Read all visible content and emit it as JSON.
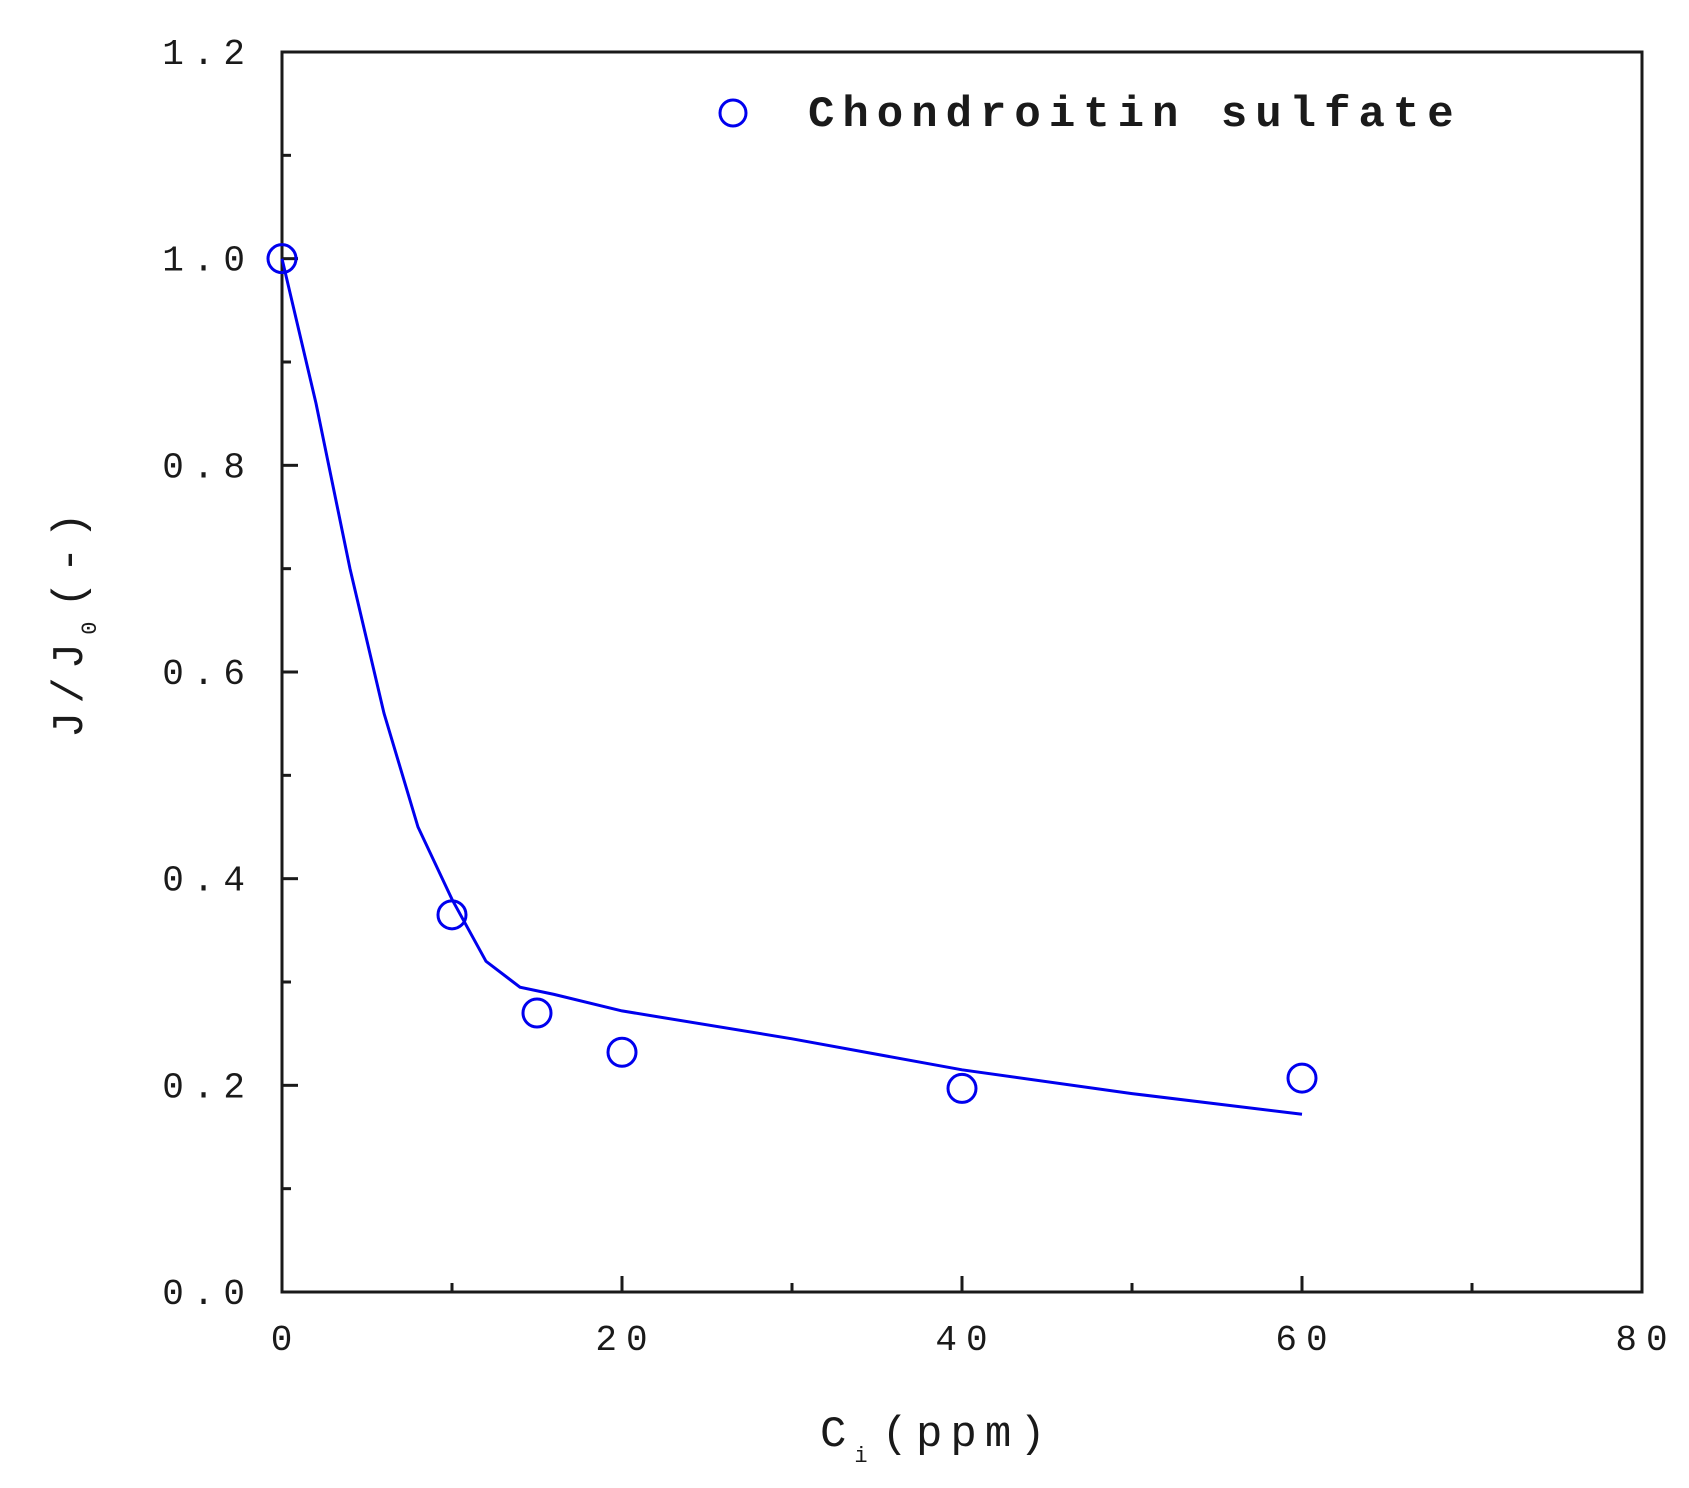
{
  "chart_data": {
    "type": "scatter",
    "title": "",
    "xlabel": {
      "main": "C",
      "sub": "i",
      "rest": "(ppm)"
    },
    "ylabel": {
      "main": "J/J",
      "sub": "0",
      "rest": "(-)"
    },
    "xlim": [
      0,
      80
    ],
    "ylim": [
      0.0,
      1.2
    ],
    "x_ticks": [
      "0",
      "20",
      "40",
      "60",
      "80"
    ],
    "x_tick_values": [
      0,
      20,
      40,
      60,
      80
    ],
    "x_minor_tick_values": [
      10,
      30,
      50,
      70
    ],
    "y_ticks": [
      "0.0",
      "0.2",
      "0.4",
      "0.6",
      "0.8",
      "1.0",
      "1.2"
    ],
    "y_tick_values": [
      0.0,
      0.2,
      0.4,
      0.6,
      0.8,
      1.0,
      1.2
    ],
    "y_minor_tick_values": [
      0.1,
      0.3,
      0.5,
      0.7,
      0.9,
      1.1
    ],
    "grid": false,
    "legend_position": "top-right",
    "series": [
      {
        "name": "Chondroitin sulfate",
        "marker": "open-circle",
        "color": "#0000ee",
        "x": [
          0,
          10,
          15,
          20,
          40,
          60
        ],
        "y": [
          1.0,
          0.365,
          0.27,
          0.232,
          0.197,
          0.207
        ]
      }
    ],
    "fit_curve": {
      "color": "#0000ee",
      "x": [
        0,
        2,
        4,
        6,
        8,
        10,
        12,
        14,
        16,
        20,
        30,
        40,
        50,
        60
      ],
      "y": [
        1.0,
        0.86,
        0.7,
        0.56,
        0.45,
        0.38,
        0.32,
        0.295,
        0.288,
        0.272,
        0.245,
        0.215,
        0.192,
        0.172
      ]
    }
  }
}
